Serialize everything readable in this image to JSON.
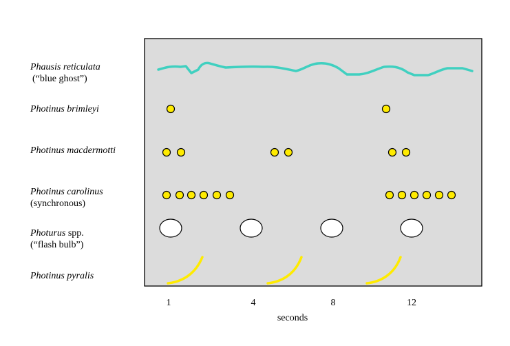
{
  "title": "",
  "x_axis": {
    "label": "seconds",
    "ticks": [
      "1",
      "4",
      "8",
      "12"
    ]
  },
  "species": [
    {
      "name": "Phausis reticulata",
      "sub": "(“blue ghost”)",
      "pattern": "continuous glow"
    },
    {
      "name": "Photinus brimleyi",
      "sub": "",
      "pattern": "single flash"
    },
    {
      "name": "Photinus macdermotti",
      "sub": "",
      "pattern": "double flash"
    },
    {
      "name": "Photinus carolinus",
      "sub": "(synchronous)",
      "pattern": "flash train"
    },
    {
      "name": "Photurus",
      "name_suffix": " spp.",
      "sub": "(“flash bulb”)",
      "pattern": "large flash"
    },
    {
      "name": "Photinus pyralis",
      "sub": "",
      "pattern": "J-shaped flash"
    }
  ],
  "colors": {
    "panel": "#dcdcdc",
    "glow_line": "#40d0c0",
    "flash": "#ffeb00",
    "bulb": "#ffffff"
  }
}
